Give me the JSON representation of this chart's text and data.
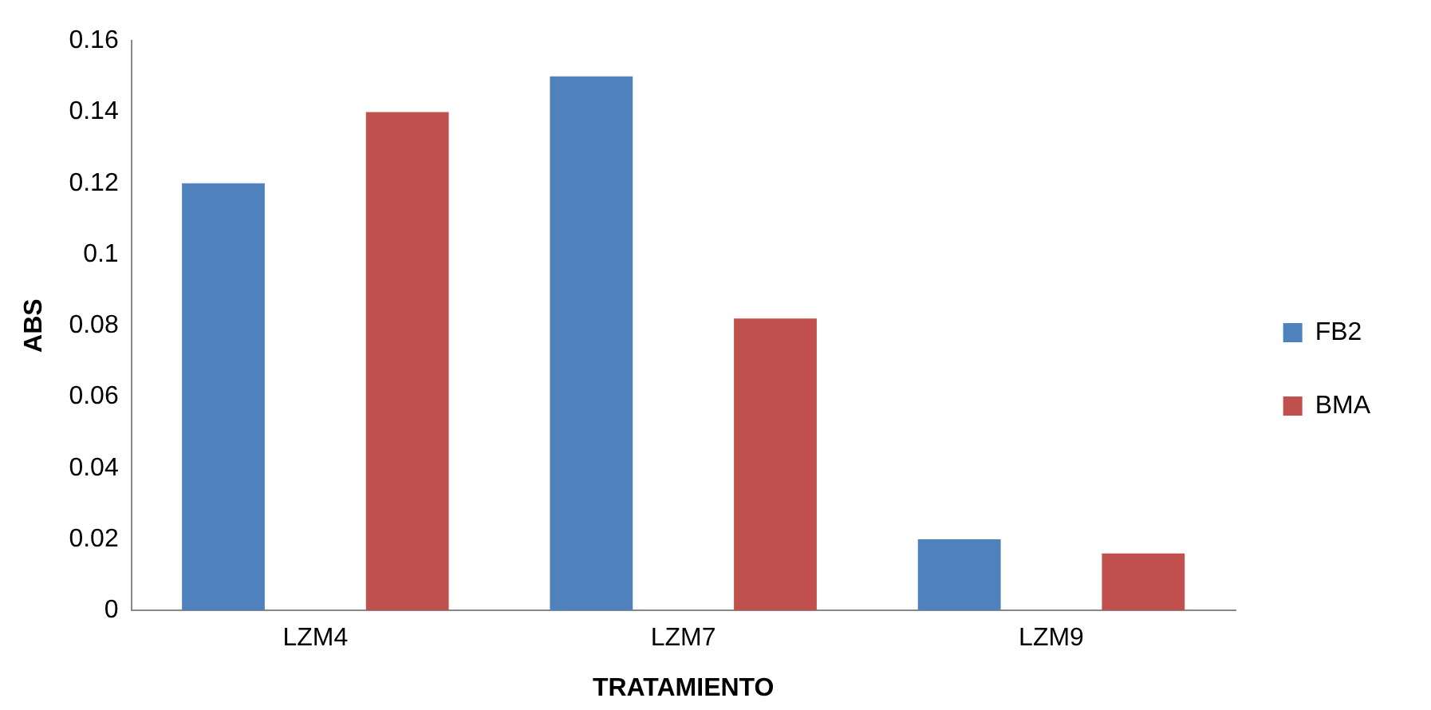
{
  "chart_data": {
    "type": "bar",
    "xlabel": "TRATAMIENTO",
    "ylabel": "ABS",
    "categories": [
      "LZM4",
      "LZM7",
      "LZM9"
    ],
    "series": [
      {
        "name": "FB2",
        "color": "#4f81bd",
        "values": [
          0.12,
          0.15,
          0.02
        ]
      },
      {
        "name": "BMA",
        "color": "#c0504d",
        "values": [
          0.14,
          0.082,
          0.016
        ]
      }
    ],
    "ylim": [
      0,
      0.16
    ],
    "yticks": [
      0,
      0.02,
      0.04,
      0.06,
      0.08,
      0.1,
      0.12,
      0.14,
      0.16
    ],
    "grid": false,
    "legend": "right"
  }
}
